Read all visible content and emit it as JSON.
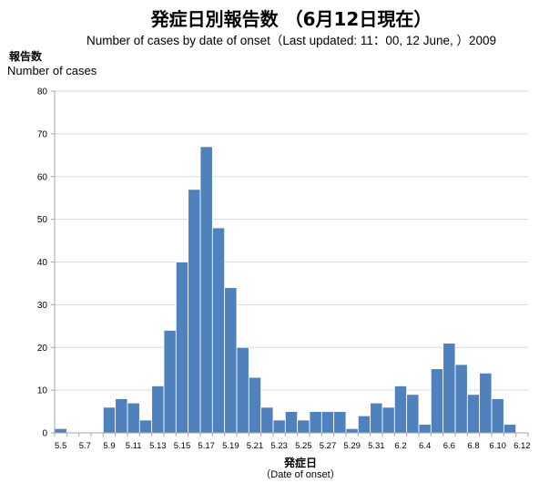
{
  "chart_data": {
    "type": "bar",
    "title": "発症日別報告数 （6月12日現在）",
    "subtitle": "Number of cases by date of onset（Last updated: 11：00, 12 June, ）2009",
    "ylabel": [
      "報告数",
      "Number of cases"
    ],
    "xlabel": [
      "発症日",
      "（Date of onset）"
    ],
    "ylim": [
      0,
      80
    ],
    "yticks": [
      0,
      10,
      20,
      30,
      40,
      50,
      60,
      70,
      80
    ],
    "grid": true,
    "colors": {
      "bar": "#4f81bd"
    },
    "xticks": [
      "5.5",
      "5.7",
      "5.9",
      "5.11",
      "5.13",
      "5.15",
      "5.17",
      "5.19",
      "5.21",
      "5.23",
      "5.25",
      "5.27",
      "5.29",
      "5.31",
      "6.2",
      "6.4",
      "6.6",
      "6.8",
      "6.10",
      "6.12"
    ],
    "categories": [
      "5.5",
      "5.6",
      "5.7",
      "5.8",
      "5.9",
      "5.10",
      "5.11",
      "5.12",
      "5.13",
      "5.14",
      "5.15",
      "5.16",
      "5.17",
      "5.18",
      "5.19",
      "5.20",
      "5.21",
      "5.22",
      "5.23",
      "5.24",
      "5.25",
      "5.26",
      "5.27",
      "5.28",
      "5.29",
      "5.30",
      "5.31",
      "6.1",
      "6.2",
      "6.3",
      "6.4",
      "6.5",
      "6.6",
      "6.7",
      "6.8",
      "6.9",
      "6.10",
      "6.11",
      "6.12"
    ],
    "values": [
      1,
      0,
      0,
      0,
      6,
      8,
      7,
      3,
      11,
      24,
      40,
      57,
      67,
      48,
      34,
      20,
      13,
      6,
      3,
      5,
      3,
      5,
      5,
      5,
      1,
      4,
      7,
      6,
      11,
      9,
      2,
      15,
      21,
      16,
      9,
      14,
      8,
      2,
      0
    ]
  }
}
